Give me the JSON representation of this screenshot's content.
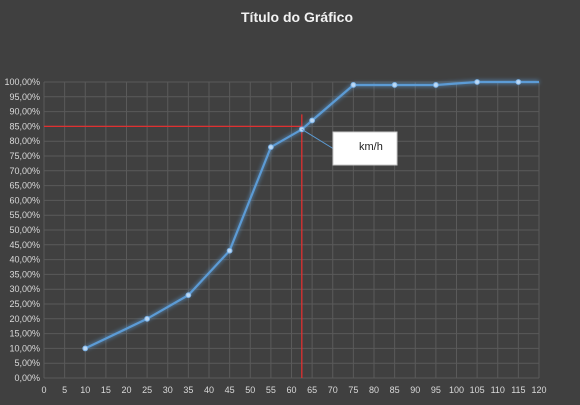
{
  "chart_data": {
    "type": "line",
    "title": "Título do Gráfico",
    "xlabel": "",
    "ylabel": "",
    "xlim": [
      0,
      120
    ],
    "ylim": [
      0,
      100
    ],
    "x_ticks": [
      0,
      5,
      10,
      15,
      20,
      25,
      30,
      35,
      40,
      45,
      50,
      55,
      60,
      65,
      70,
      75,
      80,
      85,
      90,
      95,
      100,
      105,
      110,
      115,
      120
    ],
    "y_ticks": [
      "0,00%",
      "5,00%",
      "10,00%",
      "15,00%",
      "20,00%",
      "25,00%",
      "30,00%",
      "35,00%",
      "40,00%",
      "45,00%",
      "50,00%",
      "55,00%",
      "60,00%",
      "65,00%",
      "70,00%",
      "75,00%",
      "80,00%",
      "85,00%",
      "90,00%",
      "95,00%",
      "100,00%"
    ],
    "grid": true,
    "series": [
      {
        "x": [
          10,
          25,
          35,
          45,
          55,
          62.5,
          65,
          75,
          85,
          95,
          105,
          115,
          120
        ],
        "y": [
          10,
          20,
          28,
          43,
          78,
          84,
          87,
          99,
          99,
          99,
          100,
          100,
          100
        ],
        "color": "#5b9bd5"
      }
    ],
    "reference_point": {
      "x": 62.5,
      "y": 85,
      "color": "#e03030"
    },
    "annotation": {
      "text": "km/h",
      "x": 62.5,
      "y": 84
    }
  }
}
